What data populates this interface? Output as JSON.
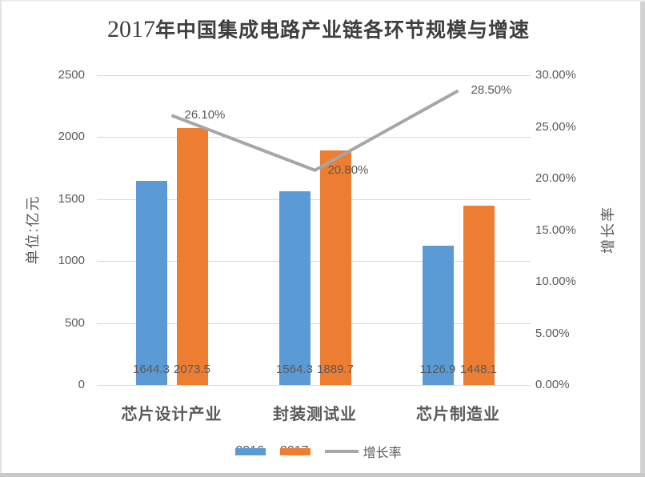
{
  "title": {
    "year": "2017",
    "text": "年中国集成电路产业链各环节规模与增速"
  },
  "chart_data": {
    "type": "bar",
    "subtype": "grouped bars with overlay line (dual axis)",
    "title": "2017年中国集成电路产业链各环节规模与增速",
    "categories": [
      "芯片设计产业",
      "封装测试业",
      "芯片制造业"
    ],
    "series": [
      {
        "name": "2016",
        "type": "bar",
        "color": "#5B9BD5",
        "values": [
          1644.3,
          1564.3,
          1126.9
        ],
        "value_labels": [
          "1644.3",
          "1564.3",
          "1126.9"
        ]
      },
      {
        "name": "2017",
        "type": "bar",
        "color": "#ED7D31",
        "values": [
          2073.5,
          1889.7,
          1448.1
        ],
        "value_labels": [
          "2073.5",
          "1889.7",
          "1448.1"
        ]
      },
      {
        "name": "增长率",
        "type": "line",
        "color": "#A6A6A6",
        "values_pct": [
          26.1,
          20.8,
          28.5
        ],
        "point_labels": [
          "26.10%",
          "20.80%",
          "28.50%"
        ]
      }
    ],
    "left_axis": {
      "title": "单位:亿元",
      "min": 0,
      "max": 2500,
      "ticks": [
        "2500",
        "2000",
        "1500",
        "1000",
        "500",
        "0"
      ]
    },
    "right_axis": {
      "title": "增长率",
      "min_pct": 0,
      "max_pct": 30,
      "ticks": [
        "30.00%",
        "25.00%",
        "20.00%",
        "15.00%",
        "10.00%",
        "5.00%",
        "0.00%"
      ]
    },
    "legend": [
      "2016",
      "2017",
      "增长率"
    ],
    "legend_position": "bottom",
    "grid": "horizontal"
  },
  "colors": {
    "bar_2016": "#5B9BD5",
    "bar_2017": "#ED7D31",
    "growth_line": "#A6A6A6",
    "gridline": "#D9D9D9",
    "tick_text": "#595959",
    "title_text": "#3F3F3F"
  }
}
